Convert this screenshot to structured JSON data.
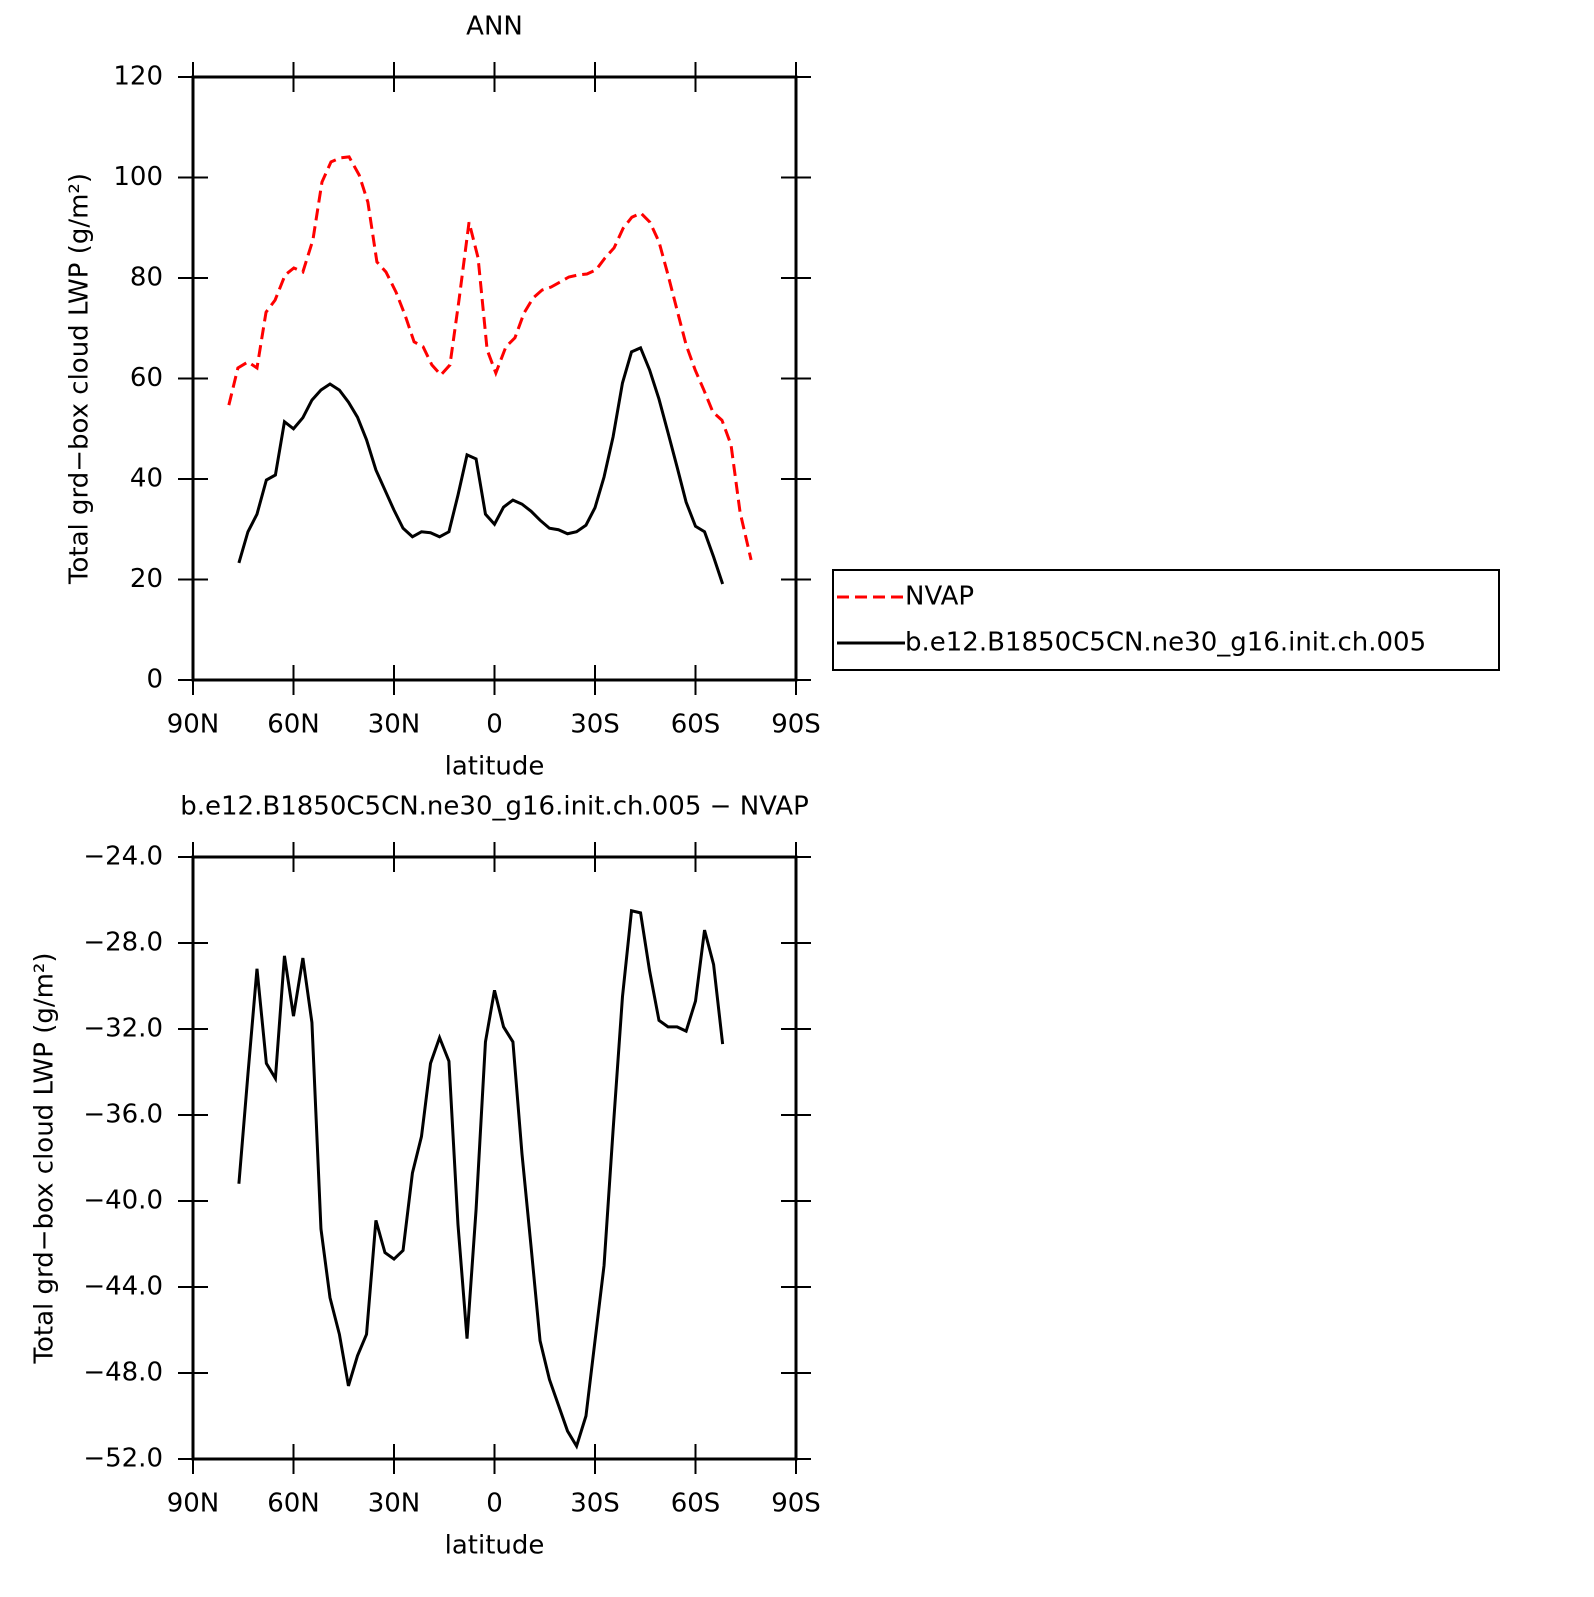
{
  "chart_data": [
    {
      "type": "line",
      "title": "ANN",
      "xlabel": "latitude",
      "ylabel": "Total grd−box cloud LWP (g/m²)",
      "xlim": [
        90,
        -90
      ],
      "xticks": [
        {
          "value": 90,
          "label": "90N"
        },
        {
          "value": 60,
          "label": "60N"
        },
        {
          "value": 30,
          "label": "30N"
        },
        0,
        {
          "value": -30,
          "label": "30S"
        },
        {
          "value": -60,
          "label": "60S"
        },
        {
          "value": -90,
          "label": "90S"
        }
      ],
      "ylim": [
        0,
        120
      ],
      "yticks": [
        0,
        20,
        40,
        60,
        80,
        100,
        120
      ],
      "legend": "right",
      "series": [
        {
          "name": "NVAP",
          "color": "#ff0000",
          "dash": true,
          "x": [
            79.3,
            76.6,
            73.6,
            70.9,
            68.2,
            65.5,
            62.5,
            59.9,
            57.2,
            54.2,
            51.5,
            48.8,
            46.1,
            43.4,
            40.4,
            37.8,
            35.1,
            32.4,
            29.4,
            26.7,
            24.0,
            21.3,
            18.7,
            16.0,
            13.3,
            10.6,
            7.6,
            4.9,
            2.2,
            -0.4,
            -3.4,
            -6.1,
            -8.8,
            -11.5,
            -14.2,
            -16.9,
            -19.6,
            -22.2,
            -24.9,
            -27.6,
            -30.3,
            -33.0,
            -35.7,
            -38.4,
            -41.0,
            -43.7,
            -46.4,
            -49.1,
            -51.8,
            -54.5,
            -57.2,
            -59.9,
            -62.5,
            -65.2,
            -67.9,
            -70.6,
            -73.3,
            -76.6
          ],
          "values": [
            54.7,
            62.1,
            63.3,
            62.1,
            73.2,
            75.6,
            80.6,
            82.0,
            81.2,
            87.6,
            99.1,
            103.1,
            103.9,
            104.1,
            100.5,
            95.1,
            83.2,
            81.2,
            77.2,
            72.6,
            67.3,
            66.3,
            62.7,
            60.7,
            62.7,
            75.6,
            91.1,
            84.0,
            65.7,
            61.1,
            66.3,
            68.1,
            73.0,
            76.0,
            77.6,
            78.2,
            79.2,
            80.2,
            80.6,
            80.8,
            81.6,
            84.0,
            86.0,
            89.9,
            92.1,
            92.9,
            91.1,
            87.2,
            80.6,
            73.6,
            66.7,
            61.7,
            57.7,
            53.3,
            51.7,
            46.8,
            33.4,
            23.9
          ]
        },
        {
          "name": "b.e12.B1850C5CN.ne30_g16.init.ch.005",
          "color": "#000000",
          "dash": false,
          "x": [
            76.3,
            73.6,
            70.9,
            68.1,
            65.4,
            62.7,
            60.0,
            57.2,
            54.5,
            51.8,
            49.1,
            46.3,
            43.6,
            40.9,
            38.2,
            35.4,
            32.7,
            30.0,
            27.3,
            24.5,
            21.8,
            19.1,
            16.4,
            13.6,
            10.9,
            8.2,
            5.5,
            2.7,
            0.0,
            -2.7,
            -5.5,
            -8.2,
            -10.9,
            -13.6,
            -16.4,
            -19.1,
            -21.8,
            -24.5,
            -27.3,
            -30.0,
            -32.7,
            -35.4,
            -38.2,
            -40.9,
            -43.6,
            -46.3,
            -49.1,
            -51.8,
            -54.5,
            -57.2,
            -60.0,
            -62.7,
            -65.4,
            -68.1
          ],
          "values": [
            23.3,
            29.5,
            33.0,
            39.8,
            40.8,
            51.4,
            50.0,
            52.2,
            55.7,
            57.7,
            58.9,
            57.7,
            55.3,
            52.3,
            47.8,
            41.8,
            37.8,
            33.8,
            30.2,
            28.5,
            29.5,
            29.3,
            28.5,
            29.5,
            36.8,
            44.8,
            44.0,
            33.0,
            31.0,
            34.4,
            35.8,
            35.0,
            33.6,
            31.8,
            30.2,
            29.9,
            29.1,
            29.5,
            30.8,
            34.3,
            40.4,
            48.4,
            59.1,
            65.3,
            66.1,
            61.7,
            55.9,
            49.2,
            42.4,
            35.4,
            30.6,
            29.5,
            24.5,
            19.1
          ]
        }
      ]
    },
    {
      "type": "line",
      "title": "b.e12.B1850C5CN.ne30_g16.init.ch.005 − NVAP",
      "xlabel": "latitude",
      "ylabel": "Total grd−box cloud LWP (g/m²)",
      "xlim": [
        90,
        -90
      ],
      "xticks": [
        {
          "value": 90,
          "label": "90N"
        },
        {
          "value": 60,
          "label": "60N"
        },
        {
          "value": 30,
          "label": "30N"
        },
        0,
        {
          "value": -30,
          "label": "30S"
        },
        {
          "value": -60,
          "label": "60S"
        },
        {
          "value": -90,
          "label": "90S"
        }
      ],
      "ylim": [
        -52,
        -24
      ],
      "yticks": [
        {
          "value": -52,
          "label": "−52.0"
        },
        {
          "value": -48,
          "label": "−48.0"
        },
        {
          "value": -44,
          "label": "−44.0"
        },
        {
          "value": -40,
          "label": "−40.0"
        },
        {
          "value": -36,
          "label": "−36.0"
        },
        {
          "value": -32,
          "label": "−32.0"
        },
        {
          "value": -28,
          "label": "−28.0"
        },
        {
          "value": -24,
          "label": "−24.0"
        }
      ],
      "series": [
        {
          "color": "#000000",
          "dash": false,
          "x": [
            76.3,
            73.6,
            70.9,
            68.1,
            65.4,
            62.7,
            60.0,
            57.2,
            54.5,
            51.8,
            49.1,
            46.3,
            43.6,
            40.9,
            38.2,
            35.4,
            32.7,
            30.0,
            27.3,
            24.5,
            21.8,
            19.1,
            16.4,
            13.6,
            10.9,
            8.2,
            5.5,
            2.7,
            0.0,
            -2.7,
            -5.5,
            -8.2,
            -10.9,
            -13.6,
            -16.4,
            -19.1,
            -21.8,
            -24.5,
            -27.3,
            -30.0,
            -32.7,
            -35.4,
            -38.2,
            -40.9,
            -43.6,
            -46.3,
            -49.1,
            -51.8,
            -54.5,
            -57.2,
            -60.0,
            -62.7,
            -65.4,
            -68.1
          ],
          "values": [
            -39.2,
            -34.1,
            -29.2,
            -33.6,
            -34.3,
            -28.6,
            -31.4,
            -28.7,
            -31.7,
            -41.3,
            -44.5,
            -46.2,
            -48.6,
            -47.2,
            -46.2,
            -40.9,
            -42.4,
            -42.7,
            -42.3,
            -38.7,
            -37.0,
            -33.6,
            -32.4,
            -33.5,
            -41.1,
            -46.4,
            -40.4,
            -32.6,
            -30.2,
            -31.9,
            -32.6,
            -37.8,
            -42.1,
            -46.5,
            -48.3,
            -49.5,
            -50.7,
            -51.4,
            -50.0,
            -46.5,
            -43.0,
            -36.7,
            -30.5,
            -26.5,
            -26.6,
            -29.3,
            -31.6,
            -31.9,
            -31.9,
            -32.1,
            -30.7,
            -27.4,
            -29.0,
            -32.7
          ]
        }
      ]
    }
  ]
}
